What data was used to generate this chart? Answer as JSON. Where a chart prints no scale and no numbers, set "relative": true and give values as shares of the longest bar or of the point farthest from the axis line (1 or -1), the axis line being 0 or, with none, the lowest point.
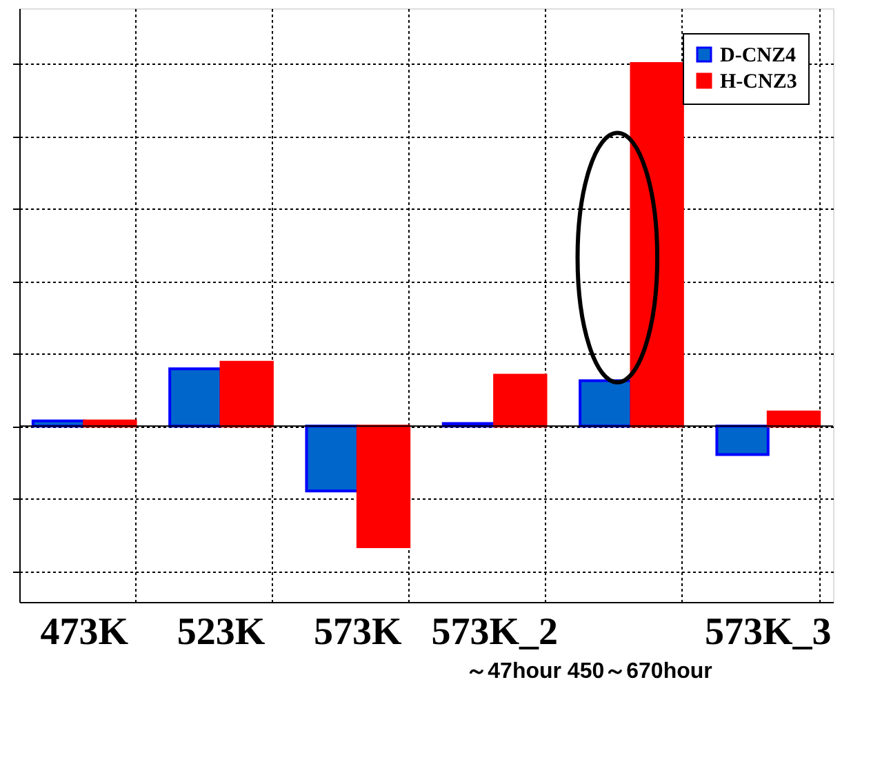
{
  "chart_data": {
    "type": "bar",
    "relative": true,
    "categories": [
      "473K",
      "523K",
      "573K",
      "573K_2",
      null,
      "573K_3"
    ],
    "series": [
      {
        "name": "D-CNZ4",
        "color": "#0066cc",
        "values": [
          0.014,
          0.158,
          -0.179,
          0.007,
          0.125,
          -0.079
        ]
      },
      {
        "name": "H-CNZ3",
        "color": "#ff0000",
        "values": [
          0.014,
          0.176,
          -0.333,
          0.14,
          1,
          0.039
        ]
      }
    ],
    "annotations": [
      "～47hour 450～670hour"
    ],
    "grid": true,
    "legend": "top right",
    "tick_labels": "x"
  }
}
